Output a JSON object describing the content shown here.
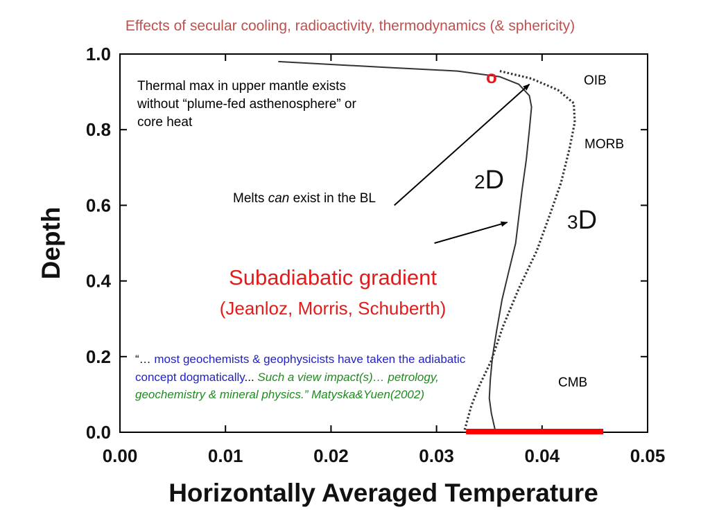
{
  "title": "Effects of secular cooling, radioactivity, thermodynamics (& sphericity)",
  "colors": {
    "title": "#c0504d",
    "highlight_red": "#e31b1b",
    "quote_blue": "#1f1fc8",
    "quote_green": "#1f8a1f",
    "curve": "#333333"
  },
  "annotations": {
    "thermal_max": [
      "Thermal max in upper mantle exists",
      "without “plume-fed asthenosphere” or",
      "core heat"
    ],
    "melts_prefix": "Melts ",
    "melts_italic": "can",
    "melts_suffix": " exist in the BL",
    "subadiabatic": "Subadiabatic gradient",
    "citation": "(Jeanloz, Morris, Schuberth)",
    "oib": "OIB",
    "morb": "MORB",
    "cmb": "CMB",
    "marker_o": "o",
    "quote_open": "“… ",
    "quote_blue": "most geochemists & geophysicists have taken the adiabatic concept dogmatically",
    "quote_dots": "... ",
    "quote_green": "Such a view impact(s)… petrology, geochemistry & mineral physics.” Matyska&Yuen(2002)"
  },
  "chart_data": {
    "type": "line",
    "xlabel": "Horizontally Averaged Temperature",
    "ylabel": "Depth",
    "xlim": [
      0.0,
      0.05
    ],
    "ylim": [
      0.0,
      1.0
    ],
    "x_ticks": [
      "0.00",
      "0.01",
      "0.02",
      "0.03",
      "0.04",
      "0.05"
    ],
    "y_ticks": [
      "0.0",
      "0.2",
      "0.4",
      "0.6",
      "0.8",
      "1.0"
    ],
    "grid": false,
    "series": [
      {
        "name": "2D",
        "style": "solid",
        "points": [
          [
            0.015,
            0.98
          ],
          [
            0.025,
            0.965
          ],
          [
            0.032,
            0.955
          ],
          [
            0.036,
            0.94
          ],
          [
            0.0378,
            0.92
          ],
          [
            0.0388,
            0.89
          ],
          [
            0.039,
            0.86
          ],
          [
            0.0388,
            0.8
          ],
          [
            0.0385,
            0.72
          ],
          [
            0.0381,
            0.64
          ],
          [
            0.0378,
            0.57
          ],
          [
            0.0375,
            0.5
          ],
          [
            0.0368,
            0.42
          ],
          [
            0.0362,
            0.35
          ],
          [
            0.0357,
            0.27
          ],
          [
            0.0353,
            0.2
          ],
          [
            0.0351,
            0.14
          ],
          [
            0.035,
            0.09
          ],
          [
            0.0352,
            0.05
          ],
          [
            0.0356,
            0.0
          ]
        ]
      },
      {
        "name": "3D",
        "style": "dotted",
        "points": [
          [
            0.036,
            0.955
          ],
          [
            0.039,
            0.935
          ],
          [
            0.0415,
            0.905
          ],
          [
            0.043,
            0.87
          ],
          [
            0.0431,
            0.82
          ],
          [
            0.0426,
            0.75
          ],
          [
            0.0418,
            0.66
          ],
          [
            0.0408,
            0.58
          ],
          [
            0.0395,
            0.48
          ],
          [
            0.0378,
            0.38
          ],
          [
            0.0363,
            0.28
          ],
          [
            0.0352,
            0.19
          ],
          [
            0.034,
            0.12
          ],
          [
            0.0333,
            0.07
          ],
          [
            0.0328,
            0.02
          ],
          [
            0.0326,
            0.0
          ]
        ]
      }
    ],
    "arrows": [
      {
        "from": [
          0.026,
          0.6
        ],
        "to": [
          0.0388,
          0.92
        ]
      },
      {
        "from": [
          0.0298,
          0.5
        ],
        "to": [
          0.0367,
          0.555
        ]
      }
    ],
    "bars": [
      {
        "x0": 0.0328,
        "x1": 0.0458,
        "y": 0.0,
        "color": "#ff0000"
      }
    ]
  }
}
